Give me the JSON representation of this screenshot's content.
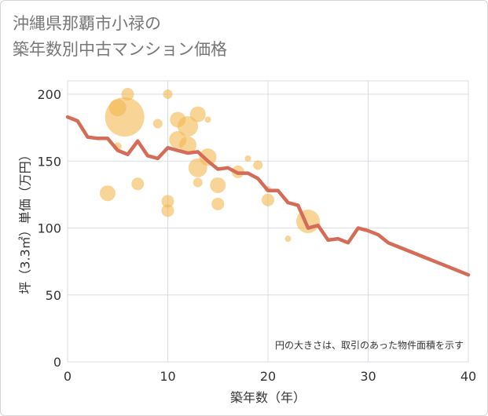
{
  "title_lines": [
    "沖縄県那覇市小禄の",
    "築年数別中古マンション価格"
  ],
  "note": "円の大きさは、取引のあった物件面積を示す",
  "colors": {
    "line": "#d56c58",
    "bubble": "#f4b850",
    "grid": "#d8dde3",
    "plot_bg": "#ffffff"
  },
  "chart_data": {
    "type": "scatter",
    "xlabel": "築年数（年）",
    "ylabel": "坪（3.3㎡）単価（万円）",
    "xlim": [
      0,
      40
    ],
    "ylim": [
      0,
      210
    ],
    "xticks": [
      0,
      10,
      20,
      30,
      40
    ],
    "yticks": [
      0,
      50,
      100,
      150,
      200
    ],
    "grid": true,
    "line": {
      "x": [
        0,
        1,
        2,
        3,
        4,
        5,
        6,
        7,
        8,
        9,
        10,
        11,
        12,
        13,
        14,
        15,
        16,
        17,
        18,
        19,
        20,
        21,
        22,
        23,
        24,
        25,
        26,
        27,
        28,
        29,
        30,
        31,
        32,
        33,
        34,
        35,
        36,
        37,
        38,
        39,
        40
      ],
      "y": [
        183,
        180,
        168,
        167,
        167,
        158,
        155,
        165,
        154,
        152,
        160,
        158,
        156,
        157,
        150,
        144,
        145,
        141,
        141,
        137,
        128,
        128,
        119,
        117,
        100,
        102,
        91,
        92,
        89,
        100,
        98,
        95,
        89,
        86,
        83,
        80,
        77,
        74,
        71,
        68,
        65
      ]
    },
    "bubbles": [
      {
        "x": 4,
        "y": 126,
        "size": 10
      },
      {
        "x": 5,
        "y": 190,
        "size": 11
      },
      {
        "x": 5,
        "y": 161,
        "size": 5
      },
      {
        "x": 5.7,
        "y": 183,
        "size": 25
      },
      {
        "x": 6,
        "y": 200,
        "size": 8
      },
      {
        "x": 7,
        "y": 133,
        "size": 8
      },
      {
        "x": 9,
        "y": 178,
        "size": 6
      },
      {
        "x": 10,
        "y": 200,
        "size": 6
      },
      {
        "x": 10,
        "y": 120,
        "size": 8
      },
      {
        "x": 10,
        "y": 113,
        "size": 8
      },
      {
        "x": 11,
        "y": 181,
        "size": 10
      },
      {
        "x": 11,
        "y": 166,
        "size": 11
      },
      {
        "x": 12,
        "y": 176,
        "size": 13
      },
      {
        "x": 12,
        "y": 162,
        "size": 11
      },
      {
        "x": 13,
        "y": 185,
        "size": 10
      },
      {
        "x": 13,
        "y": 145,
        "size": 12
      },
      {
        "x": 13,
        "y": 134,
        "size": 6
      },
      {
        "x": 14,
        "y": 153,
        "size": 11
      },
      {
        "x": 15,
        "y": 132,
        "size": 10
      },
      {
        "x": 15,
        "y": 118,
        "size": 8
      },
      {
        "x": 14,
        "y": 181,
        "size": 4
      },
      {
        "x": 17,
        "y": 142,
        "size": 8
      },
      {
        "x": 18,
        "y": 152,
        "size": 4
      },
      {
        "x": 19,
        "y": 147,
        "size": 6
      },
      {
        "x": 20,
        "y": 129,
        "size": 4
      },
      {
        "x": 20,
        "y": 121,
        "size": 8
      },
      {
        "x": 22,
        "y": 92,
        "size": 4
      },
      {
        "x": 24,
        "y": 105,
        "size": 15
      }
    ]
  }
}
